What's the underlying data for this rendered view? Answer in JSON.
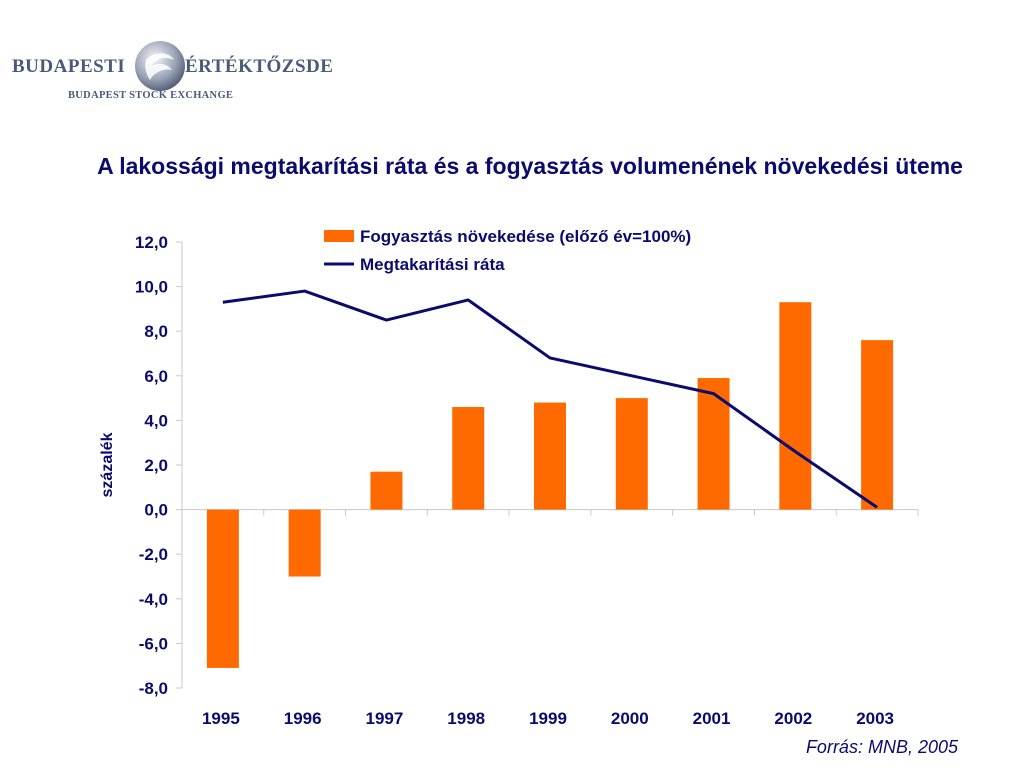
{
  "logo": {
    "left_text": "BUDAPESTI",
    "right_text": "ÉRTÉKTŐZSDE",
    "sub_text": "BUDAPEST STOCK EXCHANGE"
  },
  "title": "A lakossági megtakarítási ráta és a fogyasztás volumenének növekedési üteme",
  "source": "Forrás: MNB, 2005",
  "colors": {
    "bar": "#ff6a00",
    "line": "#0b0b6e",
    "text": "#0b0b6e"
  },
  "chart_data": {
    "type": "bar",
    "ylabel": "százalék",
    "xlabel": "",
    "ylim": [
      -8,
      12
    ],
    "yticks": [
      "12,0",
      "10,0",
      "8,0",
      "6,0",
      "4,0",
      "2,0",
      "0,0",
      "-2,0",
      "-4,0",
      "-6,0",
      "-8,0"
    ],
    "categories": [
      "1995",
      "1996",
      "1997",
      "1998",
      "1999",
      "2000",
      "2001",
      "2002",
      "2003"
    ],
    "legend_position": "top",
    "series": [
      {
        "name": "Fogyasztás növekedése (előző év=100%)",
        "type": "bar",
        "values": [
          -7.1,
          -3.0,
          1.7,
          4.6,
          4.8,
          5.0,
          5.9,
          9.3,
          7.6
        ]
      },
      {
        "name": "Megtakarítási ráta",
        "type": "line",
        "values": [
          9.3,
          9.8,
          8.5,
          9.4,
          6.8,
          6.0,
          5.2,
          2.6,
          0.1
        ]
      }
    ]
  }
}
